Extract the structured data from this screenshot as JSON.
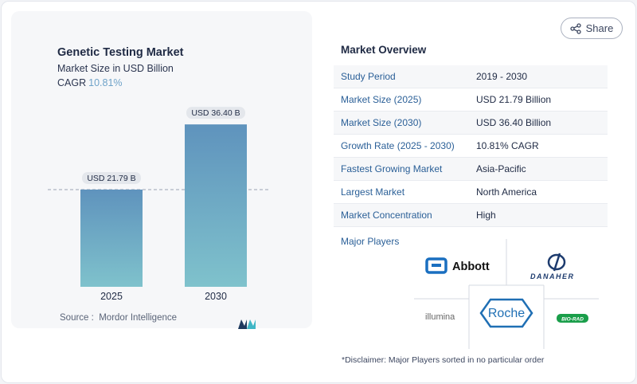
{
  "chart": {
    "title": "Genetic Testing Market",
    "subtitle": "Market Size in USD Billion",
    "cagr_label": "CAGR",
    "cagr_value": "10.81%",
    "source": "Source :  Mordor Intelligence"
  },
  "chart_data": {
    "type": "bar",
    "categories": [
      "2025",
      "2030"
    ],
    "values": [
      21.79,
      36.4
    ],
    "data_labels": [
      "USD 21.79 B",
      "USD 36.40 B"
    ],
    "title": "Genetic Testing Market",
    "subtitle": "Market Size in USD Billion",
    "xlabel": "",
    "ylabel": "",
    "ylim": [
      0,
      37.5
    ],
    "reference_line_at": 21.79,
    "grid": false,
    "legend": "none"
  },
  "share": {
    "label": "Share"
  },
  "overview": {
    "title": "Market Overview",
    "rows": [
      {
        "label": "Study Period",
        "value": "2019 - 2030"
      },
      {
        "label": "Market Size (2025)",
        "value": "USD 21.79 Billion"
      },
      {
        "label": "Market Size (2030)",
        "value": "USD 36.40 Billion"
      },
      {
        "label": "Growth Rate (2025 - 2030)",
        "value": "10.81% CAGR"
      },
      {
        "label": "Fastest Growing Market",
        "value": "Asia-Pacific"
      },
      {
        "label": "Largest Market",
        "value": "North America"
      },
      {
        "label": "Market Concentration",
        "value": "High"
      }
    ]
  },
  "players": {
    "title": "Major Players",
    "logos": [
      "Abbott",
      "DANAHER",
      "illumina",
      "Roche",
      "BIO-RAD"
    ]
  },
  "disclaimer": "*Disclaimer: Major Players sorted in no particular order",
  "colors": {
    "bar_top": "#5f93bd",
    "bar_bottom": "#7fc2cc",
    "cagr": "#6fa3c9",
    "label_accent": "#2a5f97",
    "roche_blue": "#1f6fb4",
    "biorad_green": "#1a9e4a"
  }
}
